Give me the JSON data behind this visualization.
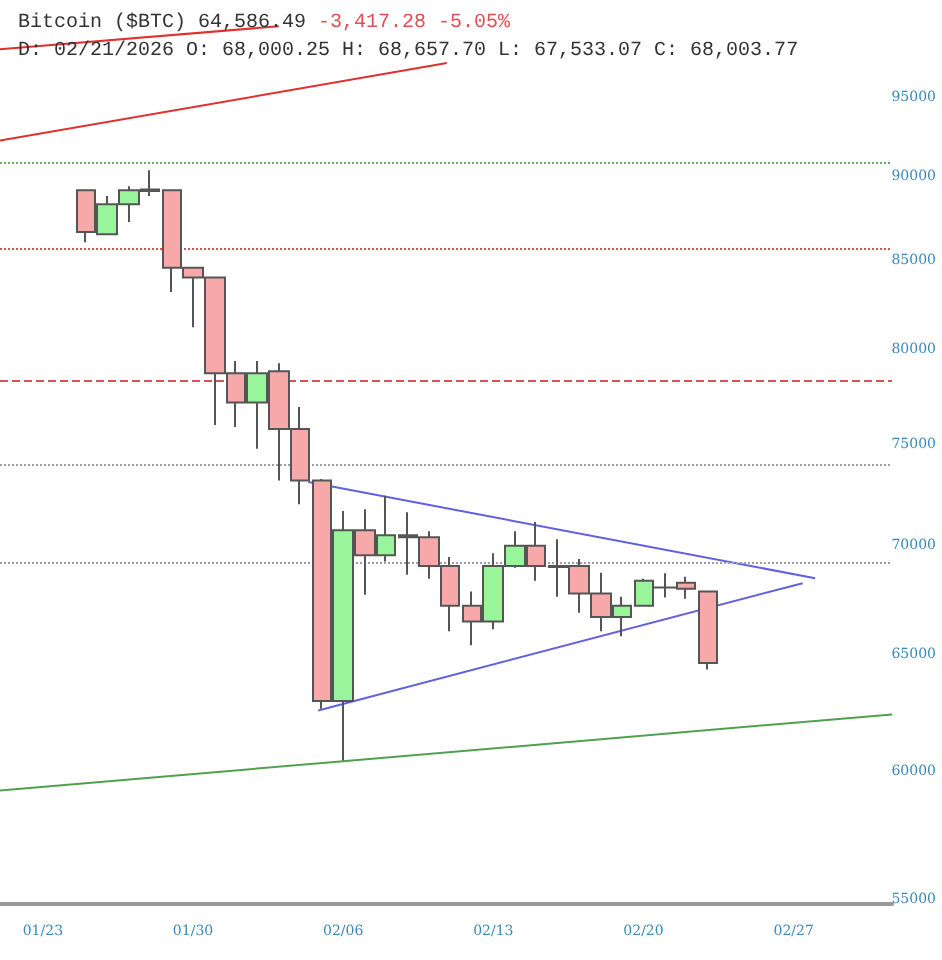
{
  "chart_data": {
    "type": "candlestick",
    "title": "Bitcoin ($BTC) 64,586.49",
    "annotations": [
      "-3,417.28 -5.05%"
    ],
    "subtitle": "D: 02/21/2026 O: 68,000.25 H: 68,657.70 L: 67,533.07 C: 68,003.77",
    "x": [
      "2026-01-25",
      "2026-01-26",
      "2026-01-27",
      "2026-01-28",
      "2026-01-29",
      "2026-01-30",
      "2026-01-31",
      "2026-02-01",
      "2026-02-02",
      "2026-02-03",
      "2026-02-04",
      "2026-02-05",
      "2026-02-06",
      "2026-02-07",
      "2026-02-08",
      "2026-02-09",
      "2026-02-10",
      "2026-02-11",
      "2026-02-12",
      "2026-02-13",
      "2026-02-14",
      "2026-02-15",
      "2026-02-16",
      "2026-02-17",
      "2026-02-18",
      "2026-02-19",
      "2026-02-20",
      "2026-02-21",
      "2026-02-22",
      "2026-02-23"
    ],
    "ohlc": [
      [
        89150,
        89150,
        86050,
        86650
      ],
      [
        86520,
        88800,
        86520,
        88300
      ],
      [
        88300,
        89400,
        87250,
        89150
      ],
      [
        89100,
        90370,
        88800,
        89200
      ],
      [
        89150,
        89150,
        83170,
        84560
      ],
      [
        84560,
        84560,
        81200,
        84000
      ],
      [
        84000,
        84000,
        75960,
        78700
      ],
      [
        78700,
        79350,
        75860,
        77140
      ],
      [
        77140,
        79350,
        74750,
        78700
      ],
      [
        78800,
        79230,
        73150,
        75760
      ],
      [
        75760,
        76900,
        71970,
        73150
      ],
      [
        73150,
        73220,
        62600,
        62940
      ],
      [
        62940,
        71640,
        60430,
        70710
      ],
      [
        70710,
        71730,
        67660,
        69510
      ],
      [
        69510,
        72390,
        69220,
        70470
      ],
      [
        70470,
        71580,
        68590,
        70370
      ],
      [
        70370,
        70660,
        68400,
        69000
      ],
      [
        69000,
        69430,
        66000,
        67160
      ],
      [
        67160,
        67810,
        65370,
        66440
      ],
      [
        66440,
        69610,
        66090,
        69000
      ],
      [
        69000,
        70660,
        68920,
        69960
      ],
      [
        69960,
        71100,
        68310,
        69000
      ],
      [
        69000,
        70270,
        67570,
        68950
      ],
      [
        69000,
        69330,
        66840,
        67720
      ],
      [
        67720,
        68690,
        66000,
        66650
      ],
      [
        66650,
        67570,
        65770,
        67160
      ],
      [
        67160,
        68400,
        67160,
        68310
      ],
      [
        68000.25,
        68657.7,
        67533.07,
        68003.77
      ],
      [
        68220,
        68500,
        67480,
        67940
      ],
      [
        67810,
        67810,
        64300,
        64590
      ]
    ],
    "series": [
      {
        "type": "line",
        "color": "#e03030",
        "x": [
          "2026-01-21",
          "2026-02-10T20:00"
        ],
        "values": [
          92220,
          97230
        ]
      },
      {
        "type": "line",
        "color": "#e03030",
        "x": [
          "2026-01-21",
          "2026-02-03"
        ],
        "values": [
          98150,
          99700
        ]
      },
      {
        "type": "line",
        "color": "#6060e0",
        "x": [
          "2026-02-04T09:00",
          "2026-02-28"
        ],
        "values": [
          73070,
          68430
        ]
      },
      {
        "type": "line",
        "color": "#6060e0",
        "x": [
          "2026-02-04T20:00",
          "2026-02-27T10:00"
        ],
        "values": [
          62530,
          68200
        ]
      },
      {
        "type": "line",
        "color": "#50a050",
        "x": [
          "2026-01-21",
          "2026-03-03T14:00"
        ],
        "values": [
          59210,
          62360
        ]
      }
    ],
    "ref_lines": [
      {
        "axis": "y",
        "value": 90900,
        "color": "#60b060",
        "line_style": "dotted"
      },
      {
        "axis": "y",
        "value": 85680,
        "color": "#e05050",
        "line_style": "dotted"
      },
      {
        "axis": "y",
        "value": 78350,
        "color": "#e05050",
        "line_style": "dashed"
      },
      {
        "axis": "y",
        "value": 73970,
        "color": "#a0a0a0",
        "line_style": "dotted"
      },
      {
        "axis": "y",
        "value": 69150,
        "color": "#a0a0a0",
        "line_style": "dotted"
      }
    ],
    "log": "y",
    "grid": false,
    "line_style": "solid",
    "marker": "none",
    "xlim": [
      "2026-01-21",
      "2026-03-03T14:00"
    ],
    "xticks": [
      {
        "value": "2026-01-23",
        "label": "01/23"
      },
      {
        "value": "2026-01-30",
        "label": "01/30"
      },
      {
        "value": "2026-02-06",
        "label": "02/06"
      },
      {
        "value": "2026-02-13",
        "label": "02/13"
      },
      {
        "value": "2026-02-20",
        "label": "02/20"
      },
      {
        "value": "2026-02-27",
        "label": "02/27"
      }
    ],
    "ylim": [
      54800,
      101500
    ],
    "yticks": [
      55000,
      60000,
      65000,
      70000,
      75000,
      80000,
      85000,
      90000,
      95000
    ]
  }
}
